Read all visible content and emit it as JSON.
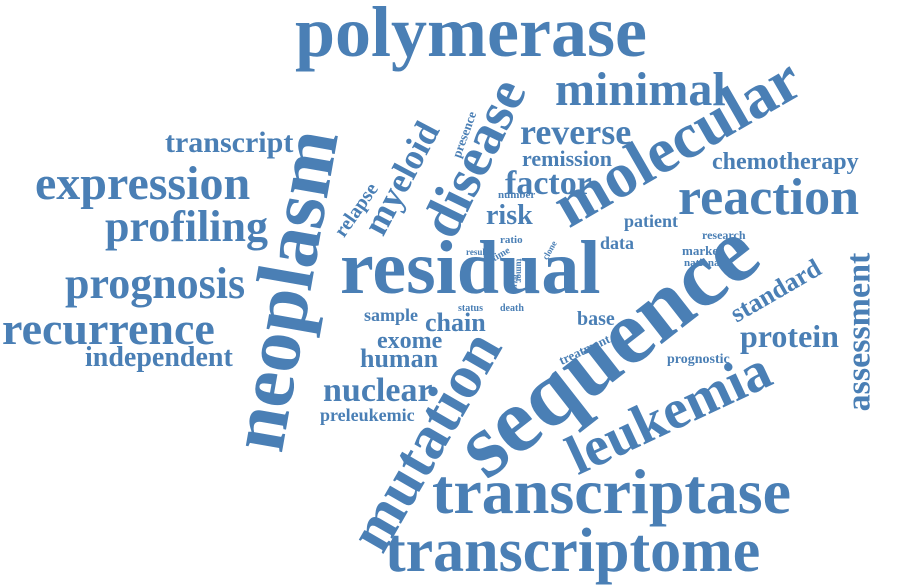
{
  "color": "#4a7fb5",
  "words": {
    "polymerase": "polymerase",
    "minimal": "minimal",
    "molecular": "molecular",
    "disease": "disease",
    "neoplasm": "neoplasm",
    "transcript": "transcript",
    "expression": "expression",
    "profiling": "profiling",
    "prognosis": "prognosis",
    "recurrence": "recurrence",
    "independent": "independent",
    "reverse": "reverse",
    "remission": "remission",
    "factor": "factor",
    "chemotherapy": "chemotherapy",
    "reaction": "reaction",
    "myeloid": "myeloid",
    "relapse": "relapse",
    "presence": "presence",
    "number": "number",
    "risk": "risk",
    "ratio": "ratio",
    "result": "result",
    "time": "time",
    "clone": "clone",
    "tumor": "tumor",
    "trial": "trial",
    "residual": "residual",
    "patient": "patient",
    "research": "research",
    "data": "data",
    "marker": "marker",
    "national": "national",
    "sequence": "sequence",
    "standard": "standard",
    "assessment": "assessment",
    "status": "status",
    "death": "death",
    "sample": "sample",
    "chain": "chain",
    "base": "base",
    "protein": "protein",
    "mutation": "mutation",
    "exome": "exome",
    "human": "human",
    "treatment": "treatment",
    "prognostic": "prognostic",
    "nuclear": "nuclear",
    "leukemia": "leukemia",
    "preleukemic": "preleukemic",
    "transcriptase": "transcriptase",
    "transcriptome": "transcriptome"
  }
}
